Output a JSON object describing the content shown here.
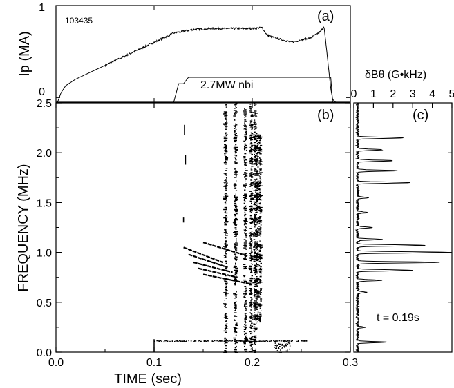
{
  "chart_data": [
    {
      "panel": "(a)",
      "type": "line",
      "shot_number": "103435",
      "ylabel": "Ip (MA)",
      "ylim": [
        -0.05,
        1.0
      ],
      "xlim": [
        0.0,
        0.3
      ],
      "y_ticks": [
        "1",
        "0"
      ],
      "series": [
        {
          "x": [
            0.0,
            0.005,
            0.01,
            0.02,
            0.04,
            0.06,
            0.08,
            0.1,
            0.12,
            0.14,
            0.16,
            0.18,
            0.2,
            0.21,
            0.215,
            0.22,
            0.24,
            0.26,
            0.27,
            0.273,
            0.276,
            0.28,
            0.282,
            0.285,
            0.29,
            0.295,
            0.3
          ],
          "y": [
            -0.1,
            0.05,
            0.13,
            0.2,
            0.3,
            0.4,
            0.5,
            0.6,
            0.7,
            0.74,
            0.75,
            0.75,
            0.75,
            0.76,
            0.68,
            0.66,
            0.6,
            0.65,
            0.72,
            0.78,
            0.5,
            0.1,
            -0.02,
            -0.05,
            -0.05,
            -0.05,
            -0.05
          ]
        },
        {
          "name": "2.7MW nbi",
          "x": [
            0.0,
            0.12,
            0.125,
            0.13,
            0.135,
            0.28,
            0.282,
            0.3
          ],
          "y": [
            -0.05,
            -0.05,
            0.15,
            0.15,
            0.22,
            0.22,
            -0.05,
            -0.05
          ]
        }
      ],
      "annotations": [
        "2.7MW nbi"
      ]
    },
    {
      "panel": "(b)",
      "type": "scatter",
      "xlabel": "TIME (sec)",
      "ylabel": "FREQUENCY (MHz)",
      "xlim": [
        0.0,
        0.3
      ],
      "ylim": [
        0.0,
        2.5
      ],
      "x_ticks": [
        "0.0",
        "0.1",
        "0.2",
        "0.3"
      ],
      "y_ticks": [
        "0.0",
        "0.5",
        "1.0",
        "1.5",
        "2.0",
        "2.5"
      ],
      "bursts": [
        {
          "t": [
            0.173,
            0.183,
            0.193,
            0.199,
            0.203
          ],
          "f_lo": 0.0,
          "f_hi": 2.5
        },
        {
          "t": [
            0.205,
            0.208
          ],
          "f_lo": 0.3,
          "f_hi": 2.2
        }
      ],
      "chirps": [
        {
          "t": [
            0.13,
            0.17
          ],
          "f": [
            1.05,
            0.9
          ]
        },
        {
          "t": [
            0.135,
            0.175
          ],
          "f": [
            0.98,
            0.85
          ]
        },
        {
          "t": [
            0.14,
            0.18
          ],
          "f": [
            0.9,
            0.8
          ]
        },
        {
          "t": [
            0.145,
            0.185
          ],
          "f": [
            0.84,
            0.75
          ]
        },
        {
          "t": [
            0.15,
            0.2
          ],
          "f": [
            0.78,
            0.68
          ]
        },
        {
          "t": [
            0.15,
            0.19
          ],
          "f": [
            1.1,
            0.98
          ]
        }
      ],
      "isolated_marks": [
        {
          "t": 0.131,
          "f": [
            2.18,
            2.28
          ]
        },
        {
          "t": 0.132,
          "f": [
            1.88,
            1.98
          ]
        },
        {
          "t": 0.13,
          "f": [
            1.3,
            1.35
          ]
        }
      ],
      "low_band": {
        "t": [
          0.1,
          0.255
        ],
        "f": 0.11
      }
    },
    {
      "panel": "(c)",
      "type": "line",
      "title": "δBθ (G•kHz)",
      "annotation": "t = 0.19s",
      "xlim": [
        0,
        5
      ],
      "ylim": [
        0.0,
        2.5
      ],
      "x_ticks": [
        "0",
        "1",
        "2",
        "3",
        "4",
        "5"
      ],
      "peaks": [
        {
          "f": 2.15,
          "amp": 2.4
        },
        {
          "f": 2.03,
          "amp": 1.3
        },
        {
          "f": 1.92,
          "amp": 1.8
        },
        {
          "f": 1.82,
          "amp": 2.0
        },
        {
          "f": 1.7,
          "amp": 2.7
        },
        {
          "f": 1.55,
          "amp": 0.6
        },
        {
          "f": 1.4,
          "amp": 0.5
        },
        {
          "f": 1.25,
          "amp": 0.7
        },
        {
          "f": 1.13,
          "amp": 1.2
        },
        {
          "f": 1.07,
          "amp": 3.5
        },
        {
          "f": 1.0,
          "amp": 4.8
        },
        {
          "f": 0.9,
          "amp": 4.2
        },
        {
          "f": 0.82,
          "amp": 2.8
        },
        {
          "f": 0.72,
          "amp": 1.2
        },
        {
          "f": 0.6,
          "amp": 0.5
        },
        {
          "f": 0.25,
          "amp": 0.4
        },
        {
          "f": 0.1,
          "amp": 1.5
        }
      ]
    }
  ]
}
